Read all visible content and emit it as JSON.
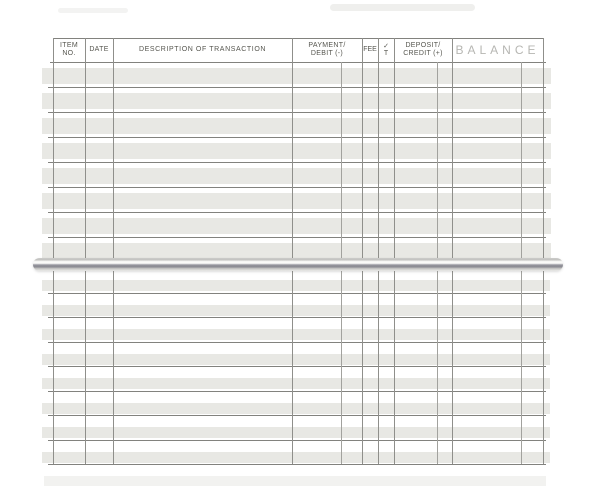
{
  "header": {
    "item_no": "ITEM\nNO.",
    "date": "DATE",
    "description": "DESCRIPTION OF TRANSACTION",
    "payment": "PAYMENT/\nDEBIT (-)",
    "fee": "FEE",
    "check_mark": "✓",
    "check_t": "T",
    "deposit": "DEPOSIT/\nCREDIT (+)",
    "balance": "BALANCE"
  },
  "pages": {
    "top": {
      "rows": 8
    },
    "bottom": {
      "rows": 8
    }
  },
  "colors": {
    "paper": "#ffffff",
    "row_stripe": "#e8e8e4",
    "rule_dark": "#82827e",
    "rule_vertical": "#8f8f8b",
    "rule_sub": "#a2a29e",
    "header_text": "#56564f",
    "balance_text": "#b6b6b2",
    "binding_dark": "#8b8b92"
  }
}
